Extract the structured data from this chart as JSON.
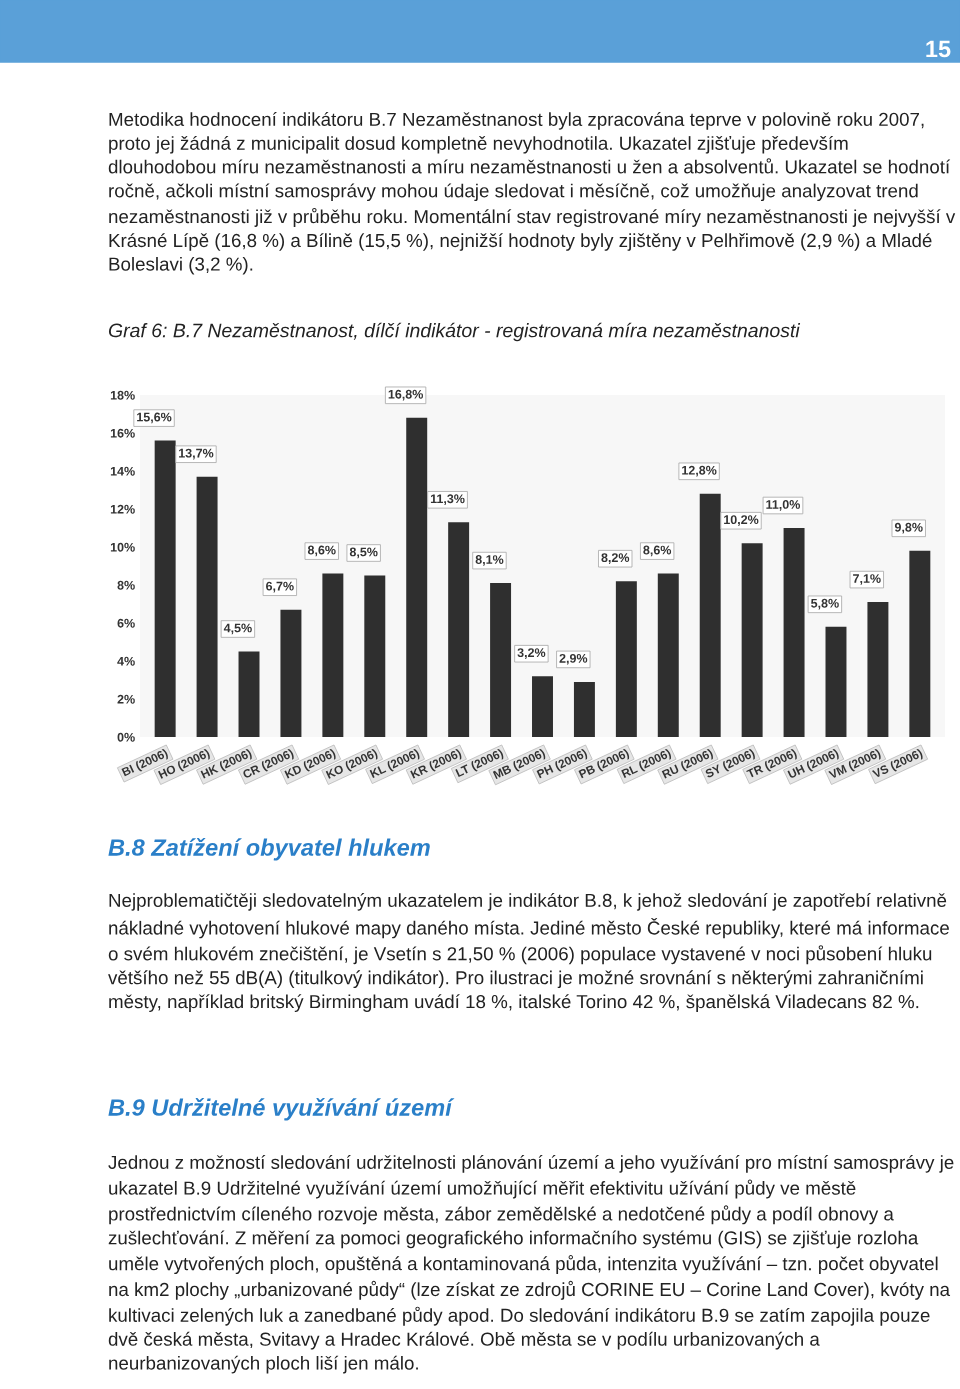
{
  "chart_data": {
    "type": "bar",
    "title": "Graf 6: B.7 Nezaměstnanost, dílčí indikátor - registrovaná míra nezaměstnanosti",
    "categories": [
      "BI (2006)",
      "HO (2006)",
      "HK (2006)",
      "CR (2006)",
      "KD (2006)",
      "KO (2006)",
      "KL (2006)",
      "KR (2006)",
      "LT (2006)",
      "MB (2006)",
      "PH (2006)",
      "PB (2006)",
      "RL (2006)",
      "RU (2006)",
      "SY (2006)",
      "TR (2006)",
      "UH (2006)",
      "VM (2006)",
      "VS (2006)"
    ],
    "values": [
      15.6,
      13.7,
      4.5,
      6.7,
      8.6,
      8.5,
      16.8,
      11.3,
      8.1,
      3.2,
      2.9,
      8.2,
      8.6,
      12.8,
      10.2,
      11.0,
      5.8,
      7.1,
      9.8
    ],
    "value_labels": [
      "15,6%",
      "13,7%",
      "4,5%",
      "6,7%",
      "8,6%",
      "8,5%",
      "16,8%",
      "11,3%",
      "8,1%",
      "3,2%",
      "2,9%",
      "8,2%",
      "8,6%",
      "12,8%",
      "10,2%",
      "11,0%",
      "5,8%",
      "7,1%",
      "9,8%"
    ],
    "color": "#2f2f2f",
    "ylim": [
      0,
      18
    ],
    "yticks": [
      {
        "value": 0,
        "label": "0%"
      },
      {
        "value": 2,
        "label": "2%"
      },
      {
        "value": 4,
        "label": "4%"
      },
      {
        "value": 6,
        "label": "6%"
      },
      {
        "value": 8,
        "label": "8%"
      },
      {
        "value": 10,
        "label": "10%"
      },
      {
        "value": 12,
        "label": "12%"
      },
      {
        "value": 14,
        "label": "14%"
      },
      {
        "value": 16,
        "label": "16%"
      },
      {
        "value": 18,
        "label": "18%"
      }
    ],
    "grid": false,
    "legend": false,
    "annotations": [
      "15",
      "Metodika hodnocení indikátoru B.7 Nezaměstnanost byla zpracována teprve v polovině roku 2007, proto jej žádná z municipalit dosud kompletně nevyhodnotila. Ukazatel zjišťuje především dlouhodobou míru nezaměstnanosti a míru nezaměstnanosti u žen a absolventů. Ukazatel se hodnotí ročně, ačkoli místní samosprávy mohou údaje sledovat i měsíčně, což umožňuje analyzovat trend nezaměstnanosti již v průběhu roku. Momentální stav registrované míry nezaměstnanosti je nejvyšší v Krásné Lípě (16,8 %) a Bílině (15,5 %), nejnižší hodnoty byly zjištěny v Pelhřimově (2,9 %) a Mladé Boleslavi (3,2 %).",
      "B.8 Zatížení obyvatel hlukem",
      "Nejproblematičtěji sledovatelným ukazatelem je indikátor B.8, k jehož sledování je zapotřebí relativně nákladné vyhotovení hlukové mapy daného místa. Jediné město České republiky, které má informace o svém hlukovém znečištění, je Vsetín s 21,50 % (2006) populace vystavené v noci působení hluku většího než 55 dB(A) (titulkový indikátor). Pro ilustraci je možné srovnání s některými zahraničními městy, například britský Birmingham uvádí 18 %, italské Torino 42 %, španělská Viladecans 82 %.",
      "B.9 Udržitelné využívání území",
      "Jednou z možností sledování udržitelnosti plánování území a jeho využívání pro místní samosprávy je ukazatel B.9 Udržitelné využívání území umožňující měřit efektivitu užívání půdy ve městě prostřednictvím cíleného rozvoje města, zábor zemědělské a nedotčené půdy a podíl obnovy a zušlechťování. Z měření za pomoci geografického informačního systému (GIS) se zjišťuje rozloha uměle vytvořených ploch, opuštěná a kontaminovaná půda, intenzita využívání – tzn. počet obyvatel na km2 plochy „urbanizované půdy“ (lze získat ze zdrojů CORINE EU – Corine Land Cover), kvóty na kultivaci zelených luk a zanedbané půdy apod. Do sledování indikátoru B.9 se zatím zapojila pouze dvě česká města, Svitavy a Hradec Králové. Obě města se v podílu urbanizovaných a neurbanizovaných ploch liší jen málo."
    ]
  }
}
